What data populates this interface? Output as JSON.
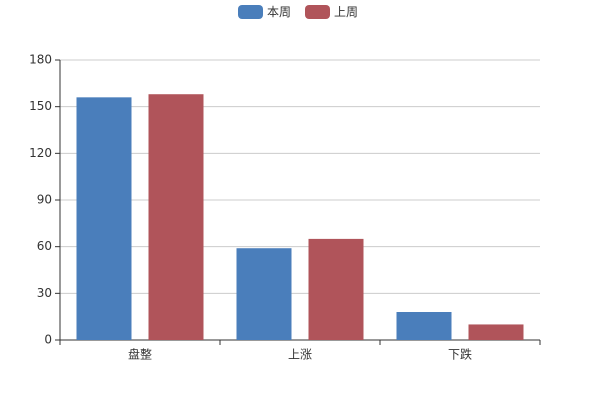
{
  "chart_data": {
    "type": "bar",
    "categories": [
      "盘整",
      "上涨",
      "下跌"
    ],
    "series": [
      {
        "name": "本周",
        "color": "#4a7ebb",
        "values": [
          156,
          59,
          18
        ]
      },
      {
        "name": "上周",
        "color": "#b0545a",
        "values": [
          158,
          65,
          10
        ]
      }
    ],
    "ylim": [
      0,
      180
    ],
    "yticks": [
      0,
      30,
      60,
      90,
      120,
      150,
      180
    ],
    "grid": true,
    "legend": "top"
  }
}
